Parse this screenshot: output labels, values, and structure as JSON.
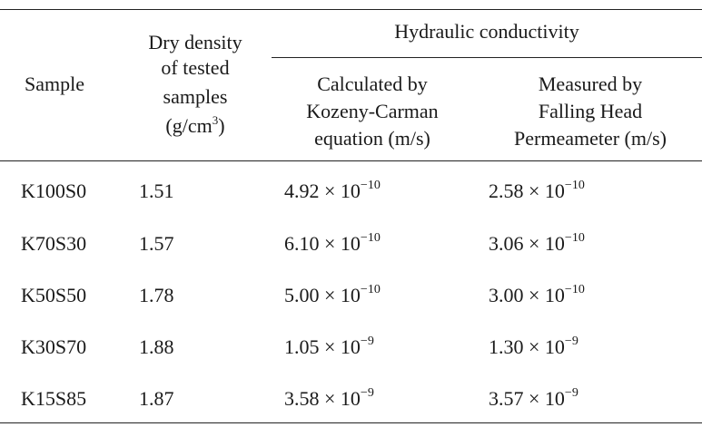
{
  "table": {
    "headers": {
      "sample": "Sample",
      "density_lines": [
        "Dry density",
        "of tested",
        "samples"
      ],
      "density_unit_pre": "(g/cm",
      "density_unit_sup": "3",
      "density_unit_post": ")",
      "group": "Hydraulic conductivity",
      "calc_lines": [
        "Calculated by",
        "Kozeny-Carman",
        "equation (m/s)"
      ],
      "meas_lines": [
        "Measured by",
        "Falling Head",
        "Permeameter (m/s)"
      ]
    },
    "rows": [
      {
        "sample": "K100S0",
        "density": "1.51",
        "calc_mant": "4.92 × 10",
        "calc_exp": "−10",
        "meas_mant": "2.58 × 10",
        "meas_exp": "−10"
      },
      {
        "sample": "K70S30",
        "density": "1.57",
        "calc_mant": "6.10 × 10",
        "calc_exp": "−10",
        "meas_mant": "3.06 × 10",
        "meas_exp": "−10"
      },
      {
        "sample": "K50S50",
        "density": "1.78",
        "calc_mant": "5.00 × 10",
        "calc_exp": "−10",
        "meas_mant": "3.00 × 10",
        "meas_exp": "−10"
      },
      {
        "sample": "K30S70",
        "density": "1.88",
        "calc_mant": "1.05 × 10",
        "calc_exp": "−9",
        "meas_mant": "1.30 × 10",
        "meas_exp": "−9"
      },
      {
        "sample": "K15S85",
        "density": "1.87",
        "calc_mant": "3.58 × 10",
        "calc_exp": "−9",
        "meas_mant": "3.57 × 10",
        "meas_exp": "−9"
      }
    ]
  }
}
